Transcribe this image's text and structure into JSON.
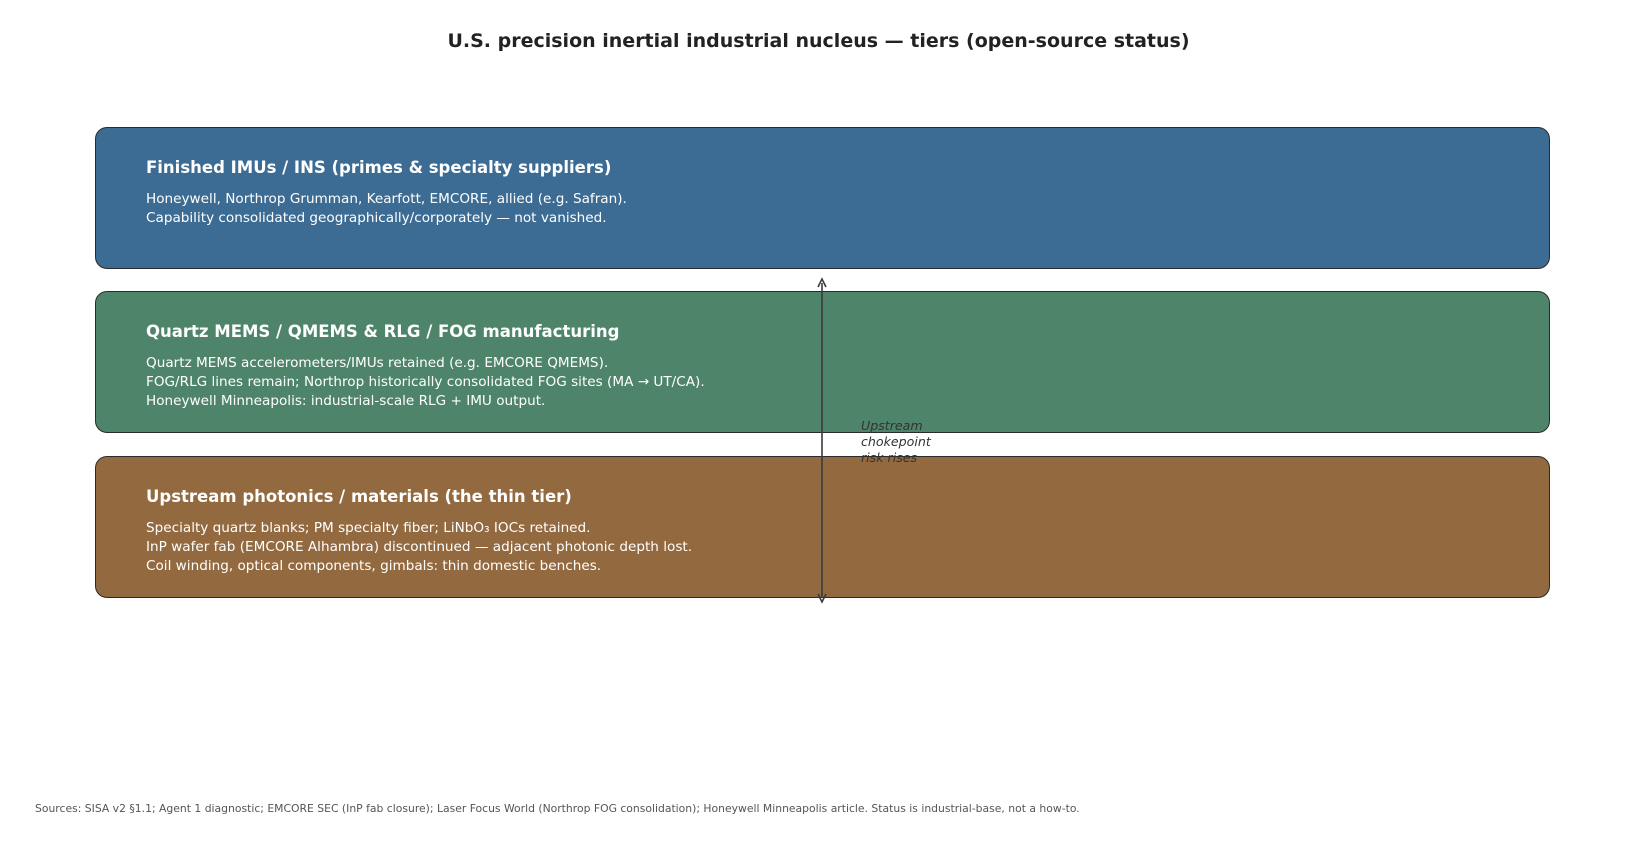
{
  "title": "U.S. precision inertial industrial nucleus — tiers (open-source status)",
  "tiers": [
    {
      "heading": "Finished IMUs / INS (primes & specialty suppliers)",
      "lines": [
        "Honeywell, Northrop Grumman, Kearfott, EMCORE, allied (e.g. Safran).",
        "Capability consolidated geographically/corporately — not vanished."
      ],
      "color": "#3c6c93"
    },
    {
      "heading": "Quartz MEMS / QMEMS & RLG / FOG manufacturing",
      "lines": [
        "Quartz MEMS accelerometers/IMUs retained (e.g. EMCORE QMEMS).",
        "FOG/RLG lines remain; Northrop historically consolidated FOG sites (MA → UT/CA).",
        "Honeywell Minneapolis: industrial-scale RLG + IMU output."
      ],
      "color": "#4e856a"
    },
    {
      "heading": "Upstream photonics / materials (the thin tier)",
      "lines": [
        "Specialty quartz blanks; PM specialty fiber; LiNbO₃ IOCs retained.",
        "InP wafer fab (EMCORE Alhambra) discontinued — adjacent photonic depth lost.",
        "Coil winding, optical components, gimbals: thin domestic benches."
      ],
      "color": "#93693f"
    }
  ],
  "arrow": {
    "label_lines": [
      "Upstream",
      "chokepoint",
      "risk rises"
    ],
    "color": "#3a3a3a"
  },
  "footnote": "Sources: SISA v2 §1.1; Agent 1 diagnostic; EMCORE SEC (InP fab closure); Laser Focus World (Northrop FOG consolidation); Honeywell Minneapolis article. Status is industrial-base, not a how-to."
}
